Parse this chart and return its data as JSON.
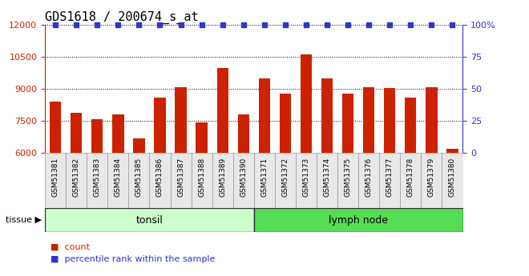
{
  "title": "GDS1618 / 200674_s_at",
  "categories": [
    "GSM51381",
    "GSM51382",
    "GSM51383",
    "GSM51384",
    "GSM51385",
    "GSM51386",
    "GSM51387",
    "GSM51388",
    "GSM51389",
    "GSM51390",
    "GSM51371",
    "GSM51372",
    "GSM51373",
    "GSM51374",
    "GSM51375",
    "GSM51376",
    "GSM51377",
    "GSM51378",
    "GSM51379",
    "GSM51380"
  ],
  "counts": [
    8400,
    7900,
    7600,
    7800,
    6700,
    8600,
    9100,
    7450,
    10000,
    7800,
    9500,
    8800,
    10600,
    9500,
    8800,
    9100,
    9050,
    8600,
    9100,
    6200
  ],
  "bar_color": "#cc2200",
  "dot_color": "#3333cc",
  "ylim_left": [
    6000,
    12000
  ],
  "ylim_right": [
    0,
    100
  ],
  "yticks_left": [
    6000,
    7500,
    9000,
    10500,
    12000
  ],
  "yticks_right": [
    0,
    25,
    50,
    75,
    100
  ],
  "grid_values": [
    7500,
    9000,
    10500,
    12000
  ],
  "tissue_groups": [
    {
      "label": "tonsil",
      "start": 0,
      "end": 10,
      "color": "#ccffcc"
    },
    {
      "label": "lymph node",
      "start": 10,
      "end": 20,
      "color": "#55dd55"
    }
  ],
  "tissue_label": "tissue",
  "legend_count_label": "count",
  "legend_pct_label": "percentile rank within the sample",
  "title_fontsize": 11,
  "axis_color_left": "#cc2200",
  "axis_color_right": "#3333cc",
  "bar_width": 0.55,
  "xtick_bg": "#dddddd",
  "percentile_values": [
    100,
    100,
    100,
    100,
    100,
    100,
    100,
    100,
    100,
    100,
    100,
    100,
    100,
    100,
    100,
    100,
    100,
    100,
    100,
    100
  ]
}
